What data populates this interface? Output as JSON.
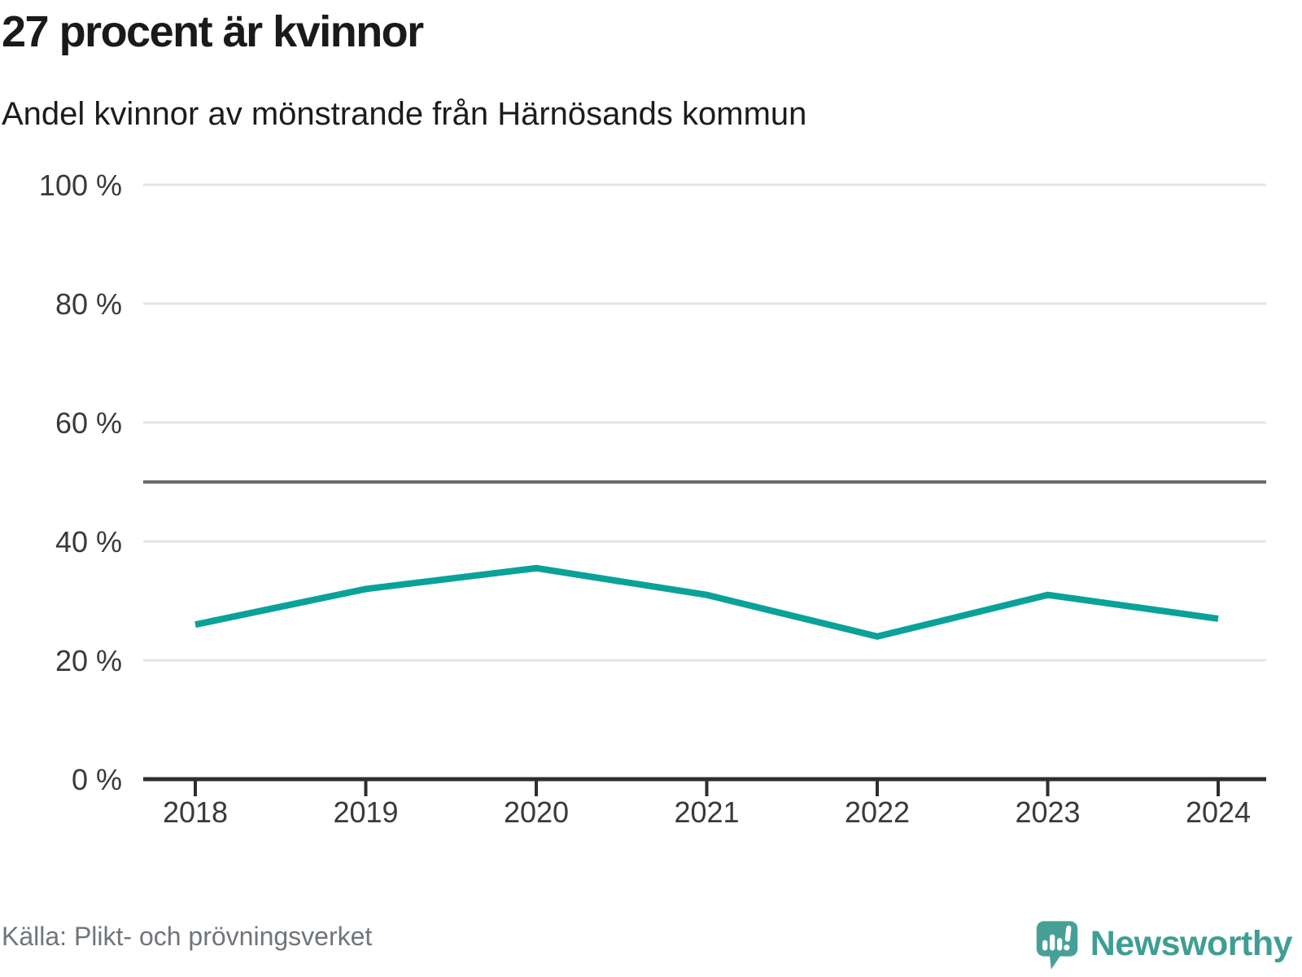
{
  "header": {
    "title": "27 procent är kvinnor",
    "subtitle": "Andel kvinnor av mönstrande från Härnösands kommun"
  },
  "chart_data": {
    "type": "line",
    "categories": [
      "2018",
      "2019",
      "2020",
      "2021",
      "2022",
      "2023",
      "2024"
    ],
    "values": [
      26,
      32,
      35.5,
      31,
      24,
      31,
      27
    ],
    "series_name": "Andel kvinnor av mönstrande",
    "unit": "%",
    "ylim": [
      0,
      100
    ],
    "y_ticks": [
      0,
      20,
      40,
      60,
      80,
      100
    ],
    "y_tick_suffix": " %",
    "reference_line": 50,
    "grid": true,
    "legend": "none",
    "line_color": "#0aa298",
    "grid_color": "#e4e4e4",
    "reference_line_color": "#67696f",
    "axis_color": "#2e2e31",
    "tick_label_color": "#3a3a3a"
  },
  "footer": {
    "source": "Källa: Plikt- och prövningsverket",
    "brand": "Newsworthy",
    "brand_color": "#3f9e94",
    "brand_icon_color": "#47a098"
  }
}
